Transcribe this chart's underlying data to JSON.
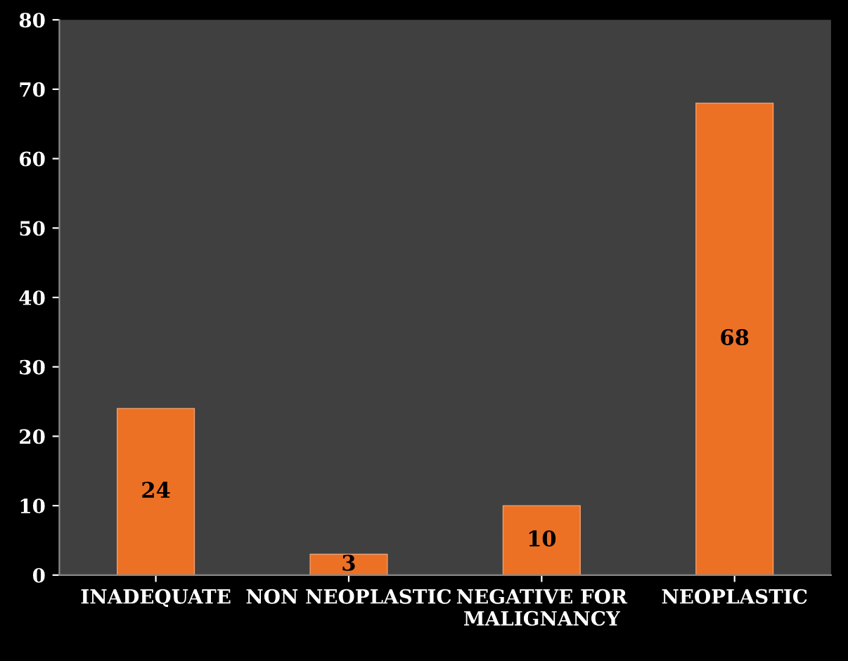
{
  "chart_data": {
    "type": "bar",
    "categories": [
      "INADEQUATE",
      "NON NEOPLASTIC",
      "NEGATIVE FOR\nMALIGNANCY",
      "NEOPLASTIC"
    ],
    "values": [
      24,
      3,
      10,
      68
    ],
    "color": "#ec7125",
    "ylim": [
      0,
      80
    ],
    "yticks": [
      0,
      10,
      20,
      30,
      40,
      50,
      60,
      70,
      80
    ],
    "data_labels": true,
    "grid": false,
    "legend": false
  }
}
